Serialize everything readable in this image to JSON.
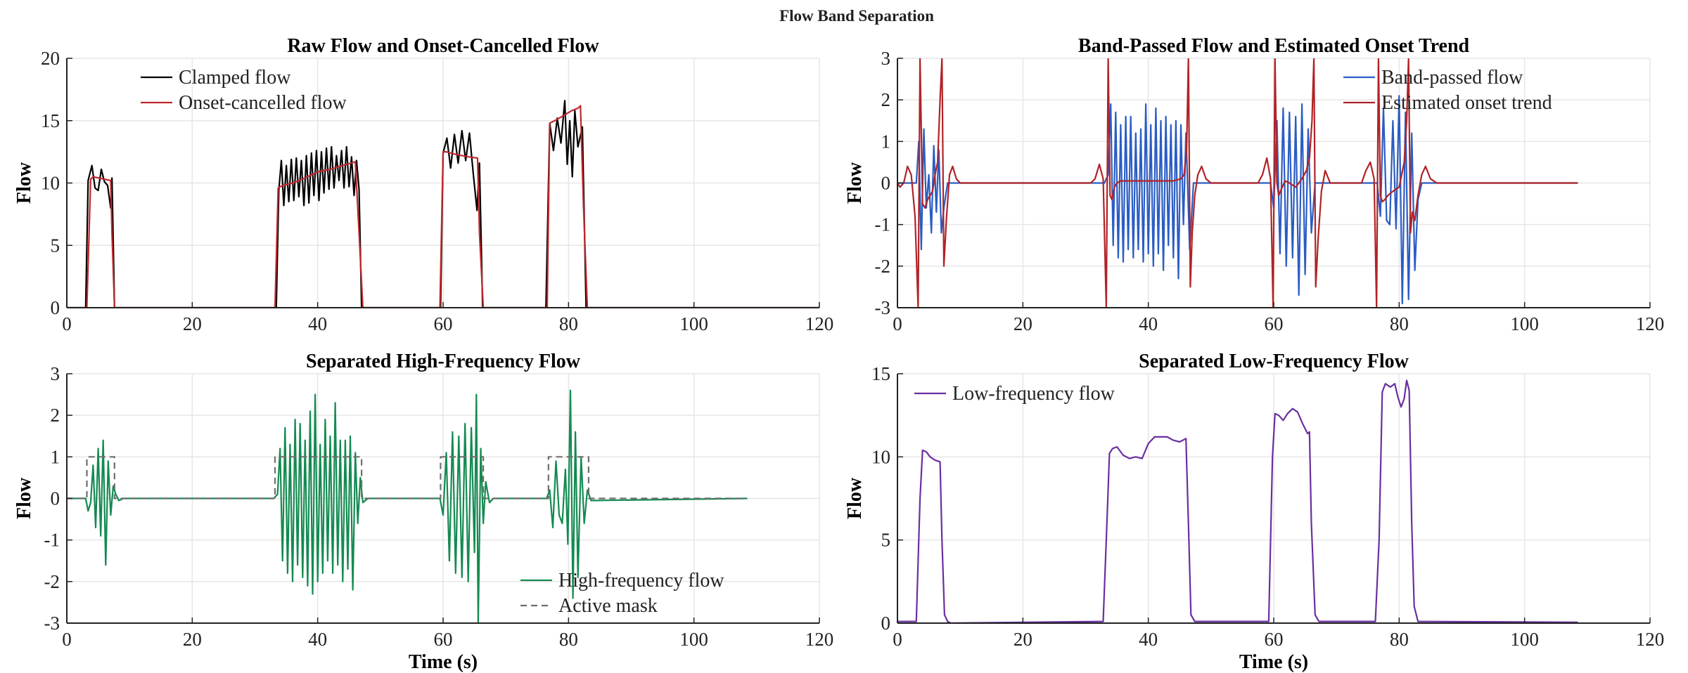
{
  "figure": {
    "title": "Flow Band Separation"
  },
  "chart_data": [
    {
      "type": "line",
      "title": "Raw Flow and Onset-Cancelled Flow",
      "xlabel": "",
      "ylabel": "Flow",
      "xlim": [
        0,
        120
      ],
      "ylim": [
        0,
        20
      ],
      "xticks": [
        0,
        20,
        40,
        60,
        80,
        100,
        120
      ],
      "yticks": [
        0,
        5,
        10,
        15,
        20
      ],
      "grid": true,
      "legend": "top-left",
      "series": [
        {
          "name": "Clamped flow",
          "color": "#000000",
          "x": [
            0,
            3.0,
            3.4,
            4.0,
            4.5,
            5.0,
            5.5,
            6.0,
            6.5,
            7.0,
            7.2,
            7.6,
            33.4,
            33.8,
            34.2,
            34.6,
            35.0,
            35.4,
            35.8,
            36.2,
            36.6,
            37.0,
            37.4,
            37.8,
            38.2,
            38.6,
            39.0,
            39.4,
            39.8,
            40.2,
            40.6,
            41.0,
            41.4,
            41.8,
            42.2,
            42.6,
            43.0,
            43.4,
            43.8,
            44.2,
            44.6,
            45.0,
            45.4,
            45.8,
            46.2,
            46.6,
            47.0,
            59.6,
            60.0,
            60.6,
            61.2,
            61.8,
            62.4,
            63.0,
            63.6,
            64.2,
            64.8,
            65.4,
            65.8,
            66.3,
            76.4,
            77.0,
            77.6,
            78.2,
            78.8,
            79.4,
            79.8,
            80.2,
            80.6,
            81.0,
            81.5,
            82.2,
            82.8,
            120
          ],
          "y": [
            0,
            0,
            10.2,
            11.4,
            9.6,
            9.4,
            11.1,
            10.1,
            9.8,
            8.0,
            10.4,
            0,
            0,
            9.4,
            11.8,
            8.2,
            11.4,
            8.5,
            11.9,
            8.6,
            12.0,
            8.9,
            11.8,
            8.2,
            12.2,
            8.4,
            12.4,
            9.0,
            12.6,
            8.6,
            12.5,
            9.2,
            12.8,
            9.5,
            12.9,
            9.6,
            12.2,
            10.2,
            12.6,
            9.6,
            12.9,
            9.7,
            12.1,
            9.0,
            11.8,
            9.5,
            0,
            0,
            12.4,
            13.6,
            11.2,
            13.9,
            11.6,
            14.2,
            11.8,
            14.0,
            10.8,
            7.8,
            11.6,
            0,
            0,
            14.8,
            12.6,
            15.2,
            13.2,
            16.6,
            11.5,
            15.0,
            10.5,
            15.8,
            12.9,
            14.5,
            0,
            0
          ]
        },
        {
          "name": "Onset-cancelled flow",
          "color": "#c0282d",
          "x": [
            0,
            3.2,
            3.8,
            4.2,
            6.0,
            7.0,
            7.2,
            7.6,
            33.2,
            33.7,
            34.0,
            34.5,
            36.0,
            38.0,
            40.0,
            42.0,
            44.0,
            46.0,
            46.6,
            47.2,
            59.5,
            60.0,
            60.5,
            62.0,
            64.0,
            65.5,
            65.8,
            66.4,
            76.6,
            77.0,
            77.8,
            78.5,
            79.5,
            80.5,
            81.5,
            81.9,
            82.4,
            83.0,
            120
          ],
          "y": [
            0,
            0,
            10.3,
            10.5,
            10.3,
            10.2,
            6.0,
            0,
            0,
            9.6,
            9.7,
            9.8,
            10.0,
            10.4,
            10.9,
            11.1,
            11.4,
            11.7,
            6.0,
            0,
            0,
            12.5,
            12.5,
            12.3,
            12.1,
            12.0,
            6.0,
            0,
            0,
            14.8,
            15.0,
            15.2,
            15.5,
            15.8,
            16.0,
            16.2,
            8.0,
            0,
            0
          ]
        }
      ]
    },
    {
      "type": "line",
      "title": "Band-Passed Flow and Estimated Onset Trend",
      "xlabel": "",
      "ylabel": "Flow",
      "xlim": [
        0,
        120
      ],
      "ylim": [
        -3,
        3
      ],
      "xticks": [
        0,
        20,
        40,
        60,
        80,
        100,
        120
      ],
      "yticks": [
        -3,
        -2,
        -1,
        0,
        1,
        2,
        3
      ],
      "grid": true,
      "legend": "top-right",
      "series": [
        {
          "name": "Band-passed flow",
          "color": "#2a5cc4",
          "x": [
            0,
            3.0,
            3.4,
            3.8,
            4.2,
            4.6,
            5.0,
            5.4,
            5.8,
            6.2,
            6.6,
            7.0,
            7.4,
            8.0,
            33.0,
            33.6,
            34.0,
            34.4,
            34.8,
            35.2,
            35.6,
            36.0,
            36.4,
            36.8,
            37.2,
            37.6,
            38.0,
            38.4,
            38.8,
            39.2,
            39.6,
            40.0,
            40.4,
            40.8,
            41.2,
            41.6,
            42.0,
            42.4,
            42.8,
            43.2,
            43.6,
            44.0,
            44.4,
            44.8,
            45.2,
            45.6,
            46.0,
            46.6,
            47.2,
            59.5,
            60.0,
            60.5,
            61.0,
            61.5,
            62.0,
            62.5,
            63.0,
            63.5,
            64.0,
            64.5,
            65.0,
            65.5,
            66.0,
            66.6,
            76.5,
            77.0,
            77.5,
            78.0,
            78.5,
            79.0,
            79.5,
            80.0,
            80.5,
            81.0,
            81.5,
            82.0,
            82.5,
            83.0,
            83.6,
            108.5
          ],
          "y": [
            0,
            0,
            1.0,
            -1.6,
            1.3,
            -0.6,
            0.2,
            -1.2,
            0.9,
            -0.7,
            0.8,
            -1.2,
            -0.6,
            0,
            0,
            0.2,
            1.9,
            -1.5,
            1.7,
            -1.8,
            1.4,
            -1.9,
            1.6,
            -1.6,
            1.6,
            -1.8,
            1.2,
            -1.6,
            1.3,
            -1.9,
            1.9,
            -1.7,
            1.4,
            -2.0,
            1.8,
            -1.7,
            1.5,
            -2.1,
            1.6,
            -1.5,
            1.4,
            -1.8,
            1.5,
            -2.3,
            1.4,
            -1.0,
            1.2,
            -1.6,
            0,
            0,
            -0.6,
            1.5,
            -1.7,
            1.8,
            -2.0,
            1.7,
            -1.8,
            1.6,
            -2.7,
            1.9,
            -2.2,
            1.3,
            -1.2,
            0,
            0,
            -0.8,
            1.8,
            -0.9,
            -1.0,
            1.5,
            -1.1,
            2.1,
            -2.9,
            1.7,
            -2.8,
            1.2,
            -2.1,
            -0.4,
            0,
            0
          ]
        },
        {
          "name": "Estimated onset trend",
          "color": "#b02326",
          "x": [
            0,
            0.4,
            1.0,
            1.6,
            2.2,
            2.8,
            3.3,
            3.6,
            4.0,
            4.4,
            4.8,
            5.2,
            5.6,
            6.0,
            6.4,
            6.8,
            7.1,
            7.4,
            7.8,
            8.3,
            8.8,
            9.4,
            10.0,
            30.8,
            31.5,
            32.2,
            32.8,
            33.3,
            33.6,
            33.9,
            34.2,
            34.6,
            35.0,
            35.6,
            36.5,
            38.0,
            40.0,
            42.0,
            44.0,
            45.2,
            45.7,
            46.1,
            46.4,
            46.7,
            47.0,
            47.4,
            47.9,
            48.5,
            49.2,
            50.0,
            57.5,
            58.2,
            58.9,
            59.5,
            59.9,
            60.2,
            60.5,
            60.8,
            61.2,
            61.8,
            62.5,
            63.5,
            64.5,
            65.2,
            65.7,
            66.1,
            66.4,
            66.7,
            67.1,
            67.6,
            68.2,
            69.0,
            74.0,
            74.7,
            75.4,
            76.0,
            76.4,
            76.7,
            77.0,
            77.3,
            77.7,
            78.2,
            79.0,
            80.0,
            80.8,
            81.2,
            81.5,
            81.8,
            82.1,
            82.5,
            83.0,
            83.6,
            84.2,
            85.0,
            86.0,
            108.5
          ],
          "y": [
            0,
            -0.1,
            0,
            0.4,
            0.2,
            -0.8,
            -3.0,
            3.0,
            -0.5,
            -0.6,
            -0.4,
            -0.3,
            -0.2,
            0.2,
            0.5,
            2.0,
            3.0,
            -2.0,
            -0.9,
            0.2,
            0.4,
            0.1,
            0,
            0,
            0.1,
            0.45,
            0.1,
            -3.0,
            3.0,
            -0.3,
            -0.4,
            -0.1,
            0.0,
            0.05,
            0.05,
            0.05,
            0.05,
            0.05,
            0.05,
            0.1,
            0.2,
            0.8,
            3.0,
            -2.5,
            -1.2,
            -0.3,
            0.2,
            0.4,
            0.1,
            0,
            0,
            0.2,
            0.6,
            0.1,
            -3.0,
            3.0,
            0,
            -0.3,
            -0.15,
            0.05,
            0.0,
            -0.1,
            0.1,
            0.3,
            0.6,
            1.5,
            3.0,
            -2.5,
            -1.3,
            -0.2,
            0.3,
            0,
            0,
            0.3,
            0.5,
            0.1,
            -3.0,
            3.0,
            -0.3,
            -0.45,
            -0.4,
            -0.3,
            -0.2,
            -0.1,
            0.5,
            1.5,
            3.0,
            -1.2,
            -0.7,
            -0.9,
            -0.3,
            0.2,
            0.4,
            0.1,
            0,
            0
          ]
        }
      ]
    },
    {
      "type": "line",
      "title": "Separated High-Frequency Flow",
      "xlabel": "Time (s)",
      "ylabel": "Flow",
      "xlim": [
        0,
        120
      ],
      "ylim": [
        -3,
        3
      ],
      "xticks": [
        0,
        20,
        40,
        60,
        80,
        100,
        120
      ],
      "yticks": [
        -3,
        -2,
        -1,
        0,
        1,
        2,
        3
      ],
      "grid": true,
      "legend": "bottom-right",
      "series": [
        {
          "name": "High-frequency flow",
          "color": "#148a50",
          "x": [
            0,
            3.0,
            3.4,
            3.8,
            4.2,
            4.6,
            5.0,
            5.4,
            5.8,
            6.2,
            6.6,
            7.0,
            7.4,
            7.8,
            8.3,
            9.0,
            33.0,
            33.6,
            34.0,
            34.4,
            34.8,
            35.2,
            35.6,
            36.0,
            36.4,
            36.8,
            37.2,
            37.6,
            38.0,
            38.4,
            38.8,
            39.2,
            39.6,
            40.0,
            40.4,
            40.8,
            41.2,
            41.6,
            42.0,
            42.4,
            42.8,
            43.2,
            43.6,
            44.0,
            44.4,
            44.8,
            45.2,
            45.6,
            46.0,
            46.4,
            46.8,
            47.2,
            48.0,
            59.5,
            60.0,
            60.5,
            61.0,
            61.5,
            62.0,
            62.5,
            63.0,
            63.5,
            64.0,
            64.5,
            65.0,
            65.3,
            65.6,
            66.0,
            66.4,
            66.8,
            67.4,
            68.0,
            76.5,
            77.0,
            77.5,
            78.0,
            78.5,
            79.0,
            79.5,
            79.9,
            80.3,
            80.7,
            81.1,
            81.5,
            82.0,
            82.5,
            83.0,
            83.6,
            108.5
          ],
          "y": [
            0,
            0,
            -0.3,
            -0.1,
            0.8,
            -0.7,
            1.2,
            -0.9,
            1.4,
            -1.6,
            0.9,
            -0.4,
            0.3,
            0.1,
            -0.05,
            0,
            0,
            0.1,
            1.2,
            -1.5,
            1.7,
            -1.8,
            1.3,
            -2.0,
            1.9,
            -1.6,
            1.8,
            -1.9,
            1.4,
            -2.1,
            2.1,
            -2.3,
            2.5,
            -2.0,
            1.3,
            -1.8,
            1.9,
            -1.5,
            1.5,
            -1.8,
            2.3,
            -1.6,
            1.4,
            -2.0,
            1.4,
            -1.7,
            1.5,
            -2.2,
            1.1,
            -0.6,
            0.5,
            -0.1,
            0,
            0,
            -0.4,
            1.1,
            -1.5,
            1.6,
            -1.8,
            1.5,
            -1.9,
            1.8,
            -2.0,
            1.7,
            -1.3,
            2.5,
            -3.0,
            1.2,
            -0.6,
            0.4,
            -0.1,
            0,
            0,
            0.2,
            -0.7,
            0.9,
            -0.4,
            -0.6,
            0.7,
            -1.1,
            2.6,
            -2.4,
            1.6,
            -1.9,
            1.0,
            -0.6,
            0.2,
            -0.05,
            0
          ]
        },
        {
          "name": "Active mask",
          "color": "#6e6e6e",
          "dashed": true,
          "x": [
            0,
            3.2,
            3.2,
            7.6,
            7.6,
            33.2,
            33.2,
            47.0,
            47.0,
            59.6,
            59.6,
            66.4,
            66.4,
            76.8,
            76.8,
            83.2,
            83.2,
            108.5
          ],
          "y": [
            0,
            0,
            1,
            1,
            0,
            0,
            1,
            1,
            0,
            0,
            1,
            1,
            0,
            0,
            1,
            1,
            0,
            0
          ]
        }
      ]
    },
    {
      "type": "line",
      "title": "Separated Low-Frequency Flow",
      "xlabel": "Time (s)",
      "ylabel": "Flow",
      "xlim": [
        0,
        120
      ],
      "ylim": [
        0,
        15
      ],
      "xticks": [
        0,
        20,
        40,
        60,
        80,
        100,
        120
      ],
      "yticks": [
        0,
        5,
        10,
        15
      ],
      "grid": true,
      "legend": "top-left",
      "series": [
        {
          "name": "Low-frequency flow",
          "color": "#6a2fa0",
          "x": [
            0,
            3.0,
            3.6,
            4.0,
            4.6,
            5.2,
            6.0,
            6.8,
            7.1,
            7.5,
            8.0,
            8.5,
            32.8,
            33.4,
            33.8,
            34.3,
            35.0,
            36.0,
            37.0,
            38.0,
            39.0,
            40.0,
            41.0,
            42.0,
            43.0,
            44.0,
            45.0,
            46.0,
            46.4,
            46.8,
            47.4,
            59.2,
            59.8,
            60.2,
            60.8,
            61.5,
            62.2,
            63.0,
            63.8,
            64.6,
            65.4,
            65.7,
            66.0,
            66.6,
            67.2,
            76.2,
            76.8,
            77.3,
            77.8,
            78.6,
            79.3,
            79.8,
            80.3,
            80.8,
            81.2,
            81.6,
            82.0,
            82.4,
            83.0,
            108.5
          ],
          "y": [
            0.1,
            0.1,
            7.5,
            10.4,
            10.3,
            10.0,
            9.8,
            9.7,
            5.0,
            0.5,
            0.1,
            0.0,
            0.1,
            6.0,
            10.2,
            10.5,
            10.6,
            10.1,
            9.9,
            10.0,
            9.9,
            10.8,
            11.2,
            11.2,
            11.2,
            11.0,
            10.9,
            11.1,
            6.0,
            0.5,
            0.1,
            0.1,
            10.0,
            12.6,
            12.5,
            12.2,
            12.6,
            12.9,
            12.7,
            12.0,
            11.4,
            11.5,
            6.0,
            0.5,
            0.1,
            0.1,
            5.0,
            13.9,
            14.4,
            14.2,
            14.4,
            13.6,
            13.0,
            13.5,
            14.6,
            14.0,
            6.0,
            1.0,
            0.1,
            0.05
          ]
        }
      ]
    }
  ]
}
